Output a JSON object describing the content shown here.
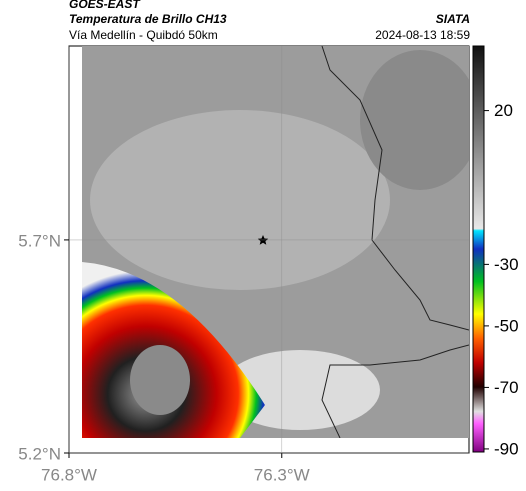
{
  "header": {
    "source": "GOES-EAST",
    "title": "Temperatura de Brillo CH13",
    "brand": "SIATA",
    "subtitle": "Vía Medellín - Quibdó 50km",
    "timestamp": "2024-08-13 18:59"
  },
  "map": {
    "xlim": [
      -76.8,
      -75.86
    ],
    "ylim": [
      5.2,
      6.155
    ],
    "xticks": [
      {
        "value": -76.8,
        "label": "76.8°W"
      },
      {
        "value": -76.3,
        "label": "76.3°W"
      }
    ],
    "yticks": [
      {
        "value": 5.7,
        "label": "5.7°N"
      },
      {
        "value": 5.2,
        "label": "5.2°N"
      }
    ]
  },
  "colorbar": {
    "lim": [
      41,
      -91
    ],
    "ticks": [
      20,
      -30,
      -50,
      -70,
      -90
    ]
  }
}
